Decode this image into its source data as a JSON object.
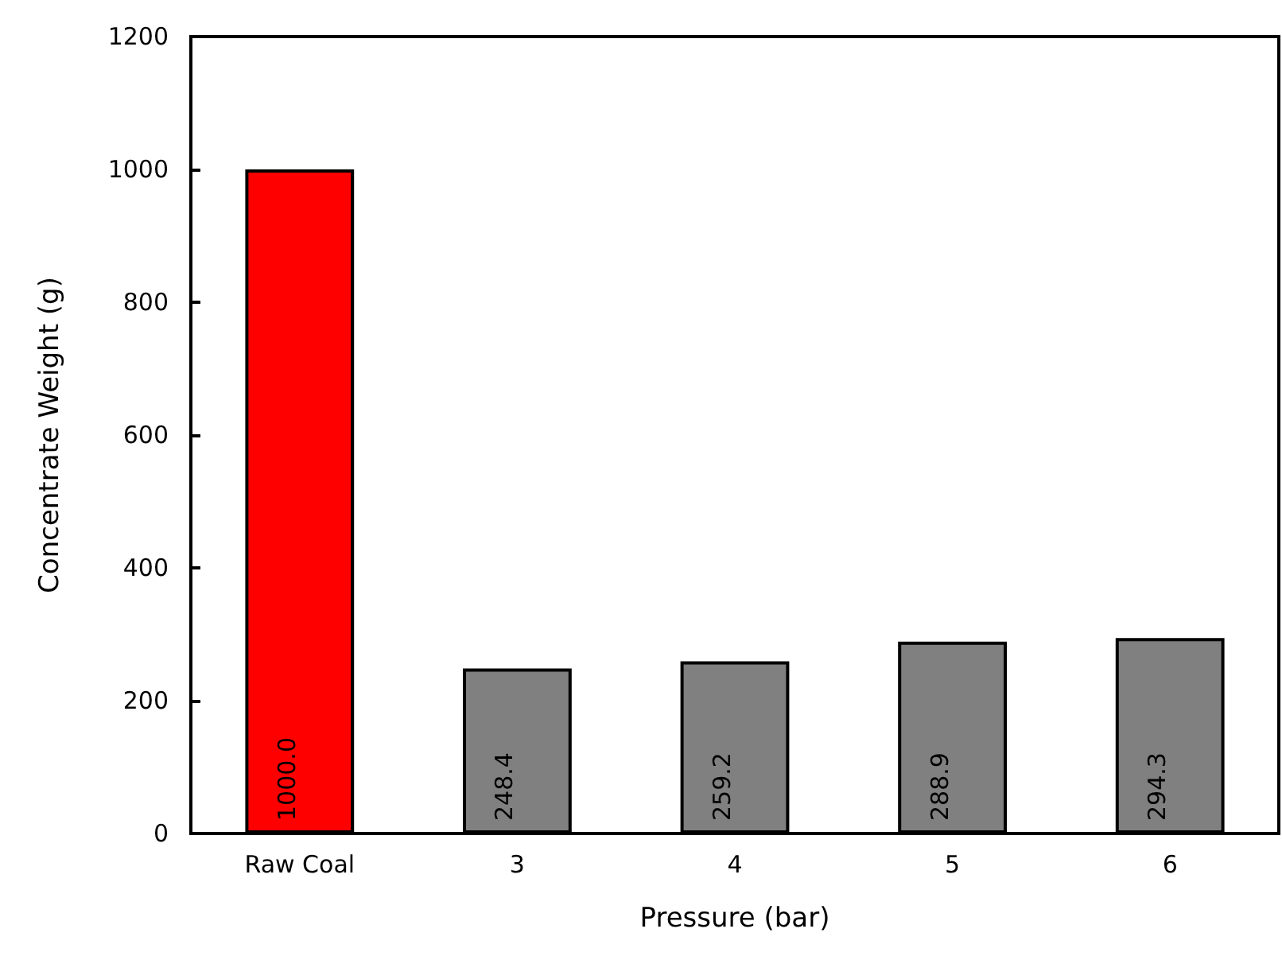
{
  "chart_data": {
    "type": "bar",
    "xlabel": "Pressure (bar)",
    "ylabel": "Concentrate Weight (g)",
    "categories": [
      "Raw Coal",
      "3",
      "4",
      "5",
      "6"
    ],
    "values": [
      1000.0,
      248.4,
      259.2,
      288.9,
      294.3
    ],
    "colors": [
      "#ff0000",
      "#808080",
      "#808080",
      "#808080",
      "#808080"
    ],
    "value_labels": [
      "1000.0",
      "248.4",
      "259.2",
      "288.9",
      "294.3"
    ],
    "ylim": [
      0,
      1200
    ],
    "yticks": [
      0,
      200,
      400,
      600,
      800,
      1000,
      1200
    ],
    "grid": false
  }
}
